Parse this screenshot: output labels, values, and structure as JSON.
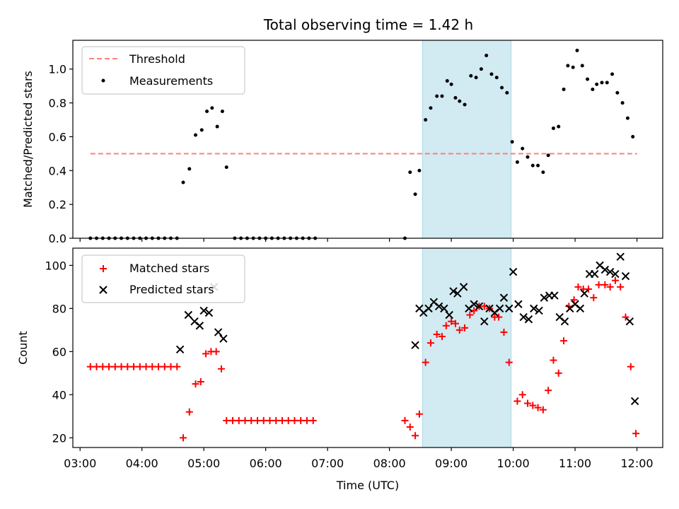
{
  "title": "Total observing time = 1.42 h",
  "colors": {
    "threshold": "#ff7f7f",
    "measurement": "#000000",
    "matched": "#ff0000",
    "predicted": "#000000",
    "highlight": "#add8e6"
  },
  "chart_data": [
    {
      "type": "scatter",
      "ylabel": "Matched/Predicted stars",
      "xlim": [
        "02:53",
        "12:25"
      ],
      "ylim": [
        0,
        1.17
      ],
      "y_ticks": [
        0.0,
        0.2,
        0.4,
        0.6,
        0.8,
        1.0
      ],
      "y_tick_labels": [
        "0.0",
        "0.2",
        "0.4",
        "0.6",
        "0.8",
        "1.0"
      ],
      "highlight_span": [
        "08:32",
        "09:58"
      ],
      "legend": {
        "position": "top-left",
        "entries": [
          "Threshold",
          "Measurements"
        ]
      },
      "threshold": {
        "name": "Threshold",
        "y": 0.5,
        "x_start": "03:10",
        "x_end": "12:00"
      },
      "series": [
        {
          "name": "Measurements",
          "points": [
            [
              "03:10",
              0
            ],
            [
              "03:16",
              0
            ],
            [
              "03:22",
              0
            ],
            [
              "03:28",
              0
            ],
            [
              "03:34",
              0
            ],
            [
              "03:40",
              0
            ],
            [
              "03:46",
              0
            ],
            [
              "03:52",
              0
            ],
            [
              "03:58",
              0
            ],
            [
              "04:04",
              0
            ],
            [
              "04:10",
              0
            ],
            [
              "04:16",
              0
            ],
            [
              "04:22",
              0
            ],
            [
              "04:28",
              0
            ],
            [
              "04:34",
              0
            ],
            [
              "04:40",
              0.33
            ],
            [
              "04:46",
              0.41
            ],
            [
              "04:52",
              0.61
            ],
            [
              "04:58",
              0.64
            ],
            [
              "05:03",
              0.75
            ],
            [
              "05:08",
              0.77
            ],
            [
              "05:13",
              0.66
            ],
            [
              "05:18",
              0.75
            ],
            [
              "05:22",
              0.42
            ],
            [
              "05:30",
              0
            ],
            [
              "05:36",
              0
            ],
            [
              "05:42",
              0
            ],
            [
              "05:48",
              0
            ],
            [
              "05:54",
              0
            ],
            [
              "06:00",
              0
            ],
            [
              "06:06",
              0
            ],
            [
              "06:12",
              0
            ],
            [
              "06:18",
              0
            ],
            [
              "06:24",
              0
            ],
            [
              "06:30",
              0
            ],
            [
              "06:36",
              0
            ],
            [
              "06:42",
              0
            ],
            [
              "06:48",
              0
            ],
            [
              "08:15",
              0
            ],
            [
              "08:20",
              0.39
            ],
            [
              "08:25",
              0.26
            ],
            [
              "08:29",
              0.4
            ],
            [
              "08:35",
              0.7
            ],
            [
              "08:40",
              0.77
            ],
            [
              "08:46",
              0.84
            ],
            [
              "08:51",
              0.84
            ],
            [
              "08:56",
              0.93
            ],
            [
              "09:00",
              0.91
            ],
            [
              "09:04",
              0.83
            ],
            [
              "09:08",
              0.81
            ],
            [
              "09:13",
              0.79
            ],
            [
              "09:19",
              0.96
            ],
            [
              "09:24",
              0.95
            ],
            [
              "09:29",
              1.0
            ],
            [
              "09:34",
              1.08
            ],
            [
              "09:39",
              0.97
            ],
            [
              "09:44",
              0.95
            ],
            [
              "09:49",
              0.89
            ],
            [
              "09:54",
              0.86
            ],
            [
              "09:59",
              0.57
            ],
            [
              "10:04",
              0.45
            ],
            [
              "10:09",
              0.53
            ],
            [
              "10:14",
              0.48
            ],
            [
              "10:19",
              0.43
            ],
            [
              "10:24",
              0.43
            ],
            [
              "10:29",
              0.39
            ],
            [
              "10:34",
              0.49
            ],
            [
              "10:39",
              0.65
            ],
            [
              "10:44",
              0.66
            ],
            [
              "10:49",
              0.88
            ],
            [
              "10:53",
              1.02
            ],
            [
              "10:58",
              1.01
            ],
            [
              "11:02",
              1.11
            ],
            [
              "11:07",
              1.02
            ],
            [
              "11:12",
              0.94
            ],
            [
              "11:17",
              0.88
            ],
            [
              "11:21",
              0.91
            ],
            [
              "11:26",
              0.92
            ],
            [
              "11:31",
              0.92
            ],
            [
              "11:36",
              0.97
            ],
            [
              "11:41",
              0.86
            ],
            [
              "11:46",
              0.8
            ],
            [
              "11:51",
              0.71
            ],
            [
              "11:56",
              0.6
            ]
          ]
        }
      ]
    },
    {
      "type": "scatter",
      "xlabel": "Time (UTC)",
      "ylabel": "Count",
      "xlim": [
        "02:53",
        "12:25"
      ],
      "ylim": [
        15.5,
        108
      ],
      "x_ticks": [
        "03:00",
        "04:00",
        "05:00",
        "06:00",
        "07:00",
        "08:00",
        "09:00",
        "10:00",
        "11:00",
        "12:00"
      ],
      "y_ticks": [
        20,
        40,
        60,
        80,
        100
      ],
      "y_tick_labels": [
        "20",
        "40",
        "60",
        "80",
        "100"
      ],
      "highlight_span": [
        "08:32",
        "09:58"
      ],
      "legend": {
        "position": "top-left",
        "entries": [
          "Matched stars",
          "Predicted stars"
        ]
      },
      "series": [
        {
          "name": "Matched stars",
          "marker": "plus",
          "points": [
            [
              "03:10",
              53
            ],
            [
              "03:16",
              53
            ],
            [
              "03:22",
              53
            ],
            [
              "03:28",
              53
            ],
            [
              "03:34",
              53
            ],
            [
              "03:40",
              53
            ],
            [
              "03:46",
              53
            ],
            [
              "03:52",
              53
            ],
            [
              "03:58",
              53
            ],
            [
              "04:04",
              53
            ],
            [
              "04:10",
              53
            ],
            [
              "04:16",
              53
            ],
            [
              "04:22",
              53
            ],
            [
              "04:28",
              53
            ],
            [
              "04:34",
              53
            ],
            [
              "04:40",
              20
            ],
            [
              "04:46",
              32
            ],
            [
              "04:52",
              45
            ],
            [
              "04:57",
              46
            ],
            [
              "05:02",
              59
            ],
            [
              "05:07",
              60
            ],
            [
              "05:12",
              60
            ],
            [
              "05:17",
              52
            ],
            [
              "05:22",
              28
            ],
            [
              "05:28",
              28
            ],
            [
              "05:34",
              28
            ],
            [
              "05:40",
              28
            ],
            [
              "05:46",
              28
            ],
            [
              "05:52",
              28
            ],
            [
              "05:58",
              28
            ],
            [
              "06:04",
              28
            ],
            [
              "06:10",
              28
            ],
            [
              "06:16",
              28
            ],
            [
              "06:22",
              28
            ],
            [
              "06:28",
              28
            ],
            [
              "06:34",
              28
            ],
            [
              "06:40",
              28
            ],
            [
              "06:46",
              28
            ],
            [
              "08:15",
              28
            ],
            [
              "08:20",
              25
            ],
            [
              "08:25",
              21
            ],
            [
              "08:29",
              31
            ],
            [
              "08:35",
              55
            ],
            [
              "08:40",
              64
            ],
            [
              "08:46",
              68
            ],
            [
              "08:51",
              67
            ],
            [
              "08:55",
              72
            ],
            [
              "09:00",
              74
            ],
            [
              "09:04",
              73
            ],
            [
              "09:08",
              70
            ],
            [
              "09:13",
              71
            ],
            [
              "09:18",
              77
            ],
            [
              "09:22",
              79
            ],
            [
              "09:27",
              81
            ],
            [
              "09:32",
              81
            ],
            [
              "09:37",
              80
            ],
            [
              "09:42",
              76
            ],
            [
              "09:46",
              76
            ],
            [
              "09:51",
              69
            ],
            [
              "09:56",
              55
            ],
            [
              "10:04",
              37
            ],
            [
              "10:09",
              40
            ],
            [
              "10:14",
              36
            ],
            [
              "10:19",
              35
            ],
            [
              "10:24",
              34
            ],
            [
              "10:29",
              33
            ],
            [
              "10:34",
              42
            ],
            [
              "10:39",
              56
            ],
            [
              "10:44",
              50
            ],
            [
              "10:49",
              65
            ],
            [
              "10:54",
              81
            ],
            [
              "10:59",
              84
            ],
            [
              "11:03",
              90
            ],
            [
              "11:08",
              89
            ],
            [
              "11:13",
              89
            ],
            [
              "11:18",
              85
            ],
            [
              "11:23",
              91
            ],
            [
              "11:29",
              91
            ],
            [
              "11:34",
              90
            ],
            [
              "11:39",
              93
            ],
            [
              "11:44",
              90
            ],
            [
              "11:49",
              76
            ],
            [
              "11:54",
              53
            ],
            [
              "11:59",
              22
            ]
          ]
        },
        {
          "name": "Predicted stars",
          "marker": "x",
          "points": [
            [
              "04:37",
              61
            ],
            [
              "04:45",
              77
            ],
            [
              "04:51",
              74
            ],
            [
              "04:56",
              72
            ],
            [
              "05:00",
              79
            ],
            [
              "05:05",
              78
            ],
            [
              "05:10",
              90
            ],
            [
              "05:14",
              69
            ],
            [
              "05:19",
              66
            ],
            [
              "08:25",
              63
            ],
            [
              "08:29",
              80
            ],
            [
              "08:33",
              78
            ],
            [
              "08:38",
              80
            ],
            [
              "08:43",
              83
            ],
            [
              "08:48",
              81
            ],
            [
              "08:53",
              80
            ],
            [
              "08:58",
              77
            ],
            [
              "09:02",
              88
            ],
            [
              "09:06",
              87
            ],
            [
              "09:12",
              90
            ],
            [
              "09:17",
              80
            ],
            [
              "09:22",
              82
            ],
            [
              "09:27",
              81
            ],
            [
              "09:32",
              74
            ],
            [
              "09:37",
              80
            ],
            [
              "09:42",
              78
            ],
            [
              "09:47",
              80
            ],
            [
              "09:51",
              85
            ],
            [
              "09:56",
              80
            ],
            [
              "10:00",
              97
            ],
            [
              "10:05",
              82
            ],
            [
              "10:10",
              76
            ],
            [
              "10:15",
              75
            ],
            [
              "10:20",
              80
            ],
            [
              "10:25",
              79
            ],
            [
              "10:30",
              85
            ],
            [
              "10:35",
              86
            ],
            [
              "10:40",
              86
            ],
            [
              "10:45",
              76
            ],
            [
              "10:50",
              74
            ],
            [
              "10:55",
              80
            ],
            [
              "11:00",
              82
            ],
            [
              "11:05",
              80
            ],
            [
              "11:09",
              87
            ],
            [
              "11:14",
              96
            ],
            [
              "11:19",
              96
            ],
            [
              "11:24",
              100
            ],
            [
              "11:29",
              98
            ],
            [
              "11:34",
              97
            ],
            [
              "11:39",
              96
            ],
            [
              "11:44",
              104
            ],
            [
              "11:49",
              95
            ],
            [
              "11:53",
              74
            ],
            [
              "11:58",
              37
            ]
          ]
        }
      ]
    }
  ]
}
